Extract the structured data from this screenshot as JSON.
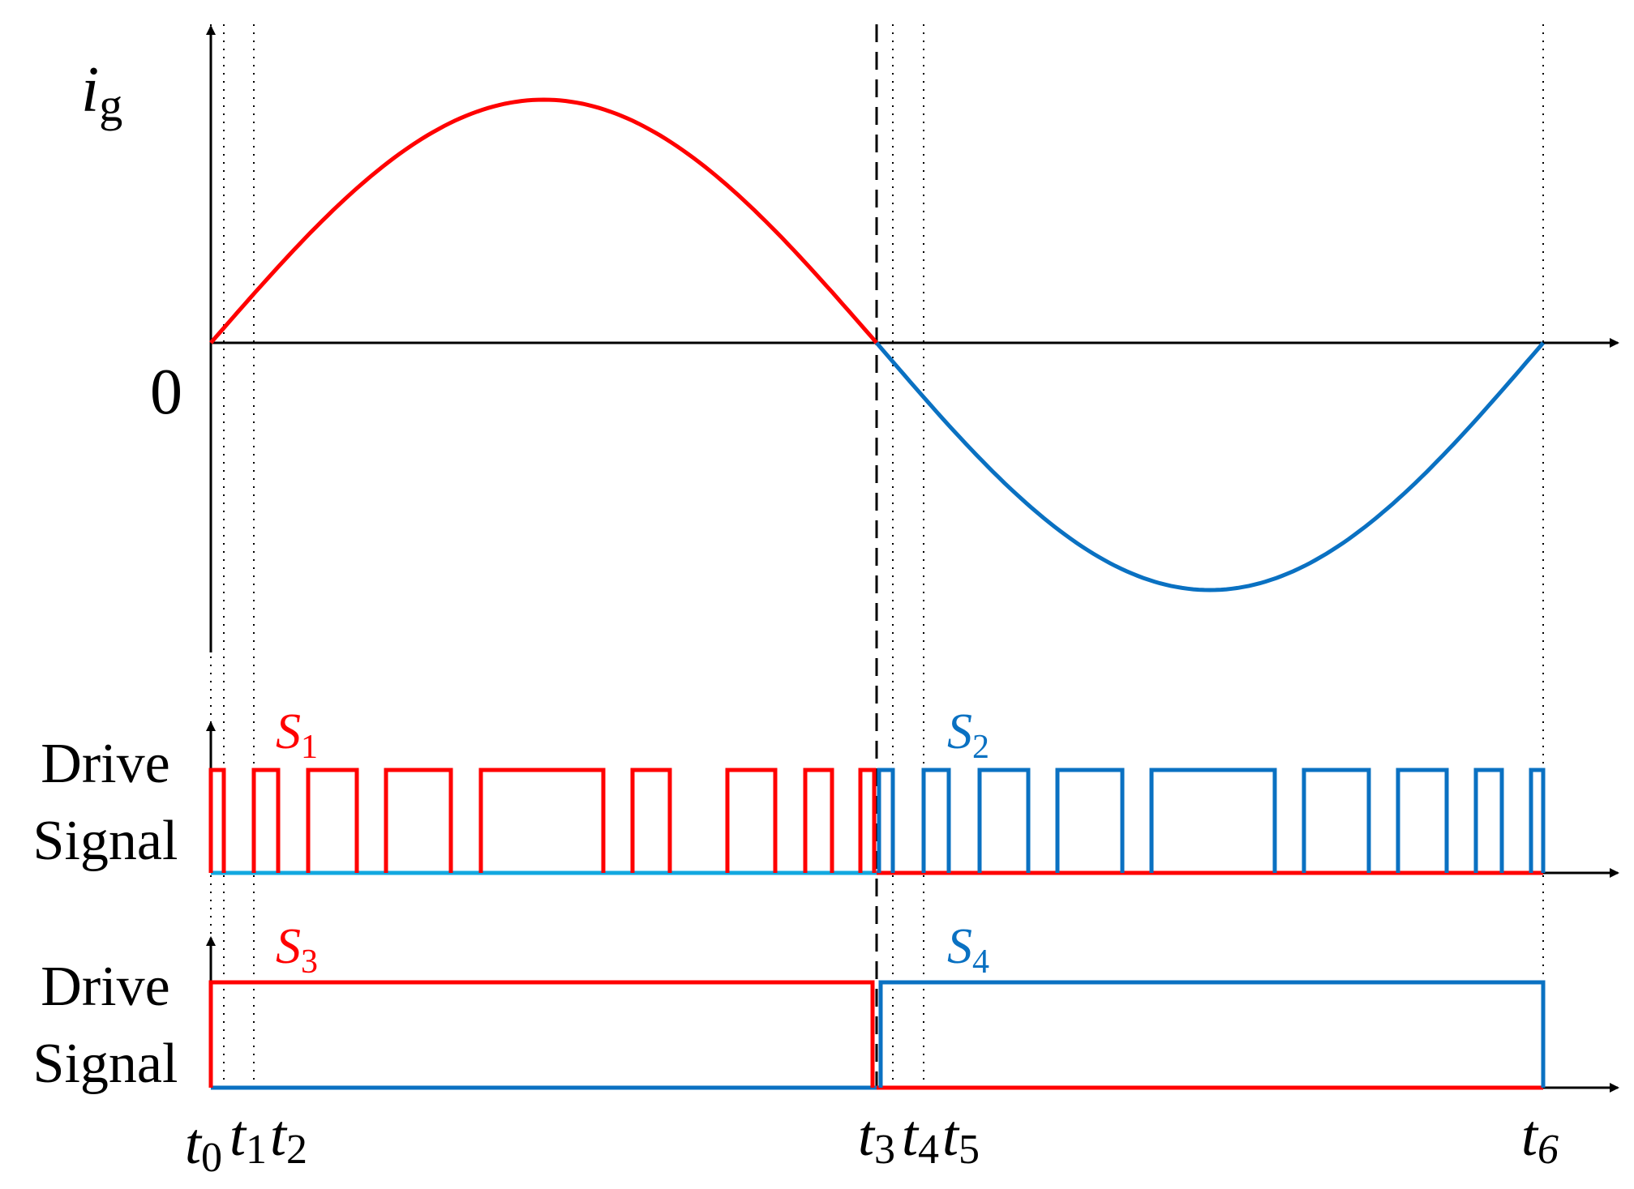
{
  "colors": {
    "axis": "#000000",
    "red": "#ff0000",
    "blue": "#0a71c2",
    "blue_light": "#12a8e0"
  },
  "labels": {
    "current_symbol": "i",
    "current_subscript": "g",
    "zero": "0",
    "drive": "Drive",
    "signal": "Signal",
    "s1": "S",
    "s1_sub": "1",
    "s2": "S",
    "s2_sub": "2",
    "s3": "S",
    "s3_sub": "3",
    "s4": "S",
    "s4_sub": "4",
    "t0": "t",
    "t0_sub": "0",
    "t1": "t",
    "t1_sub": "1",
    "t2": "t",
    "t2_sub": "2",
    "t3": "t",
    "t3_sub": "3",
    "t4": "t",
    "t4_sub": "4",
    "t5": "t",
    "t5_sub": "5",
    "t6": "t",
    "t6_sub": "6"
  }
}
